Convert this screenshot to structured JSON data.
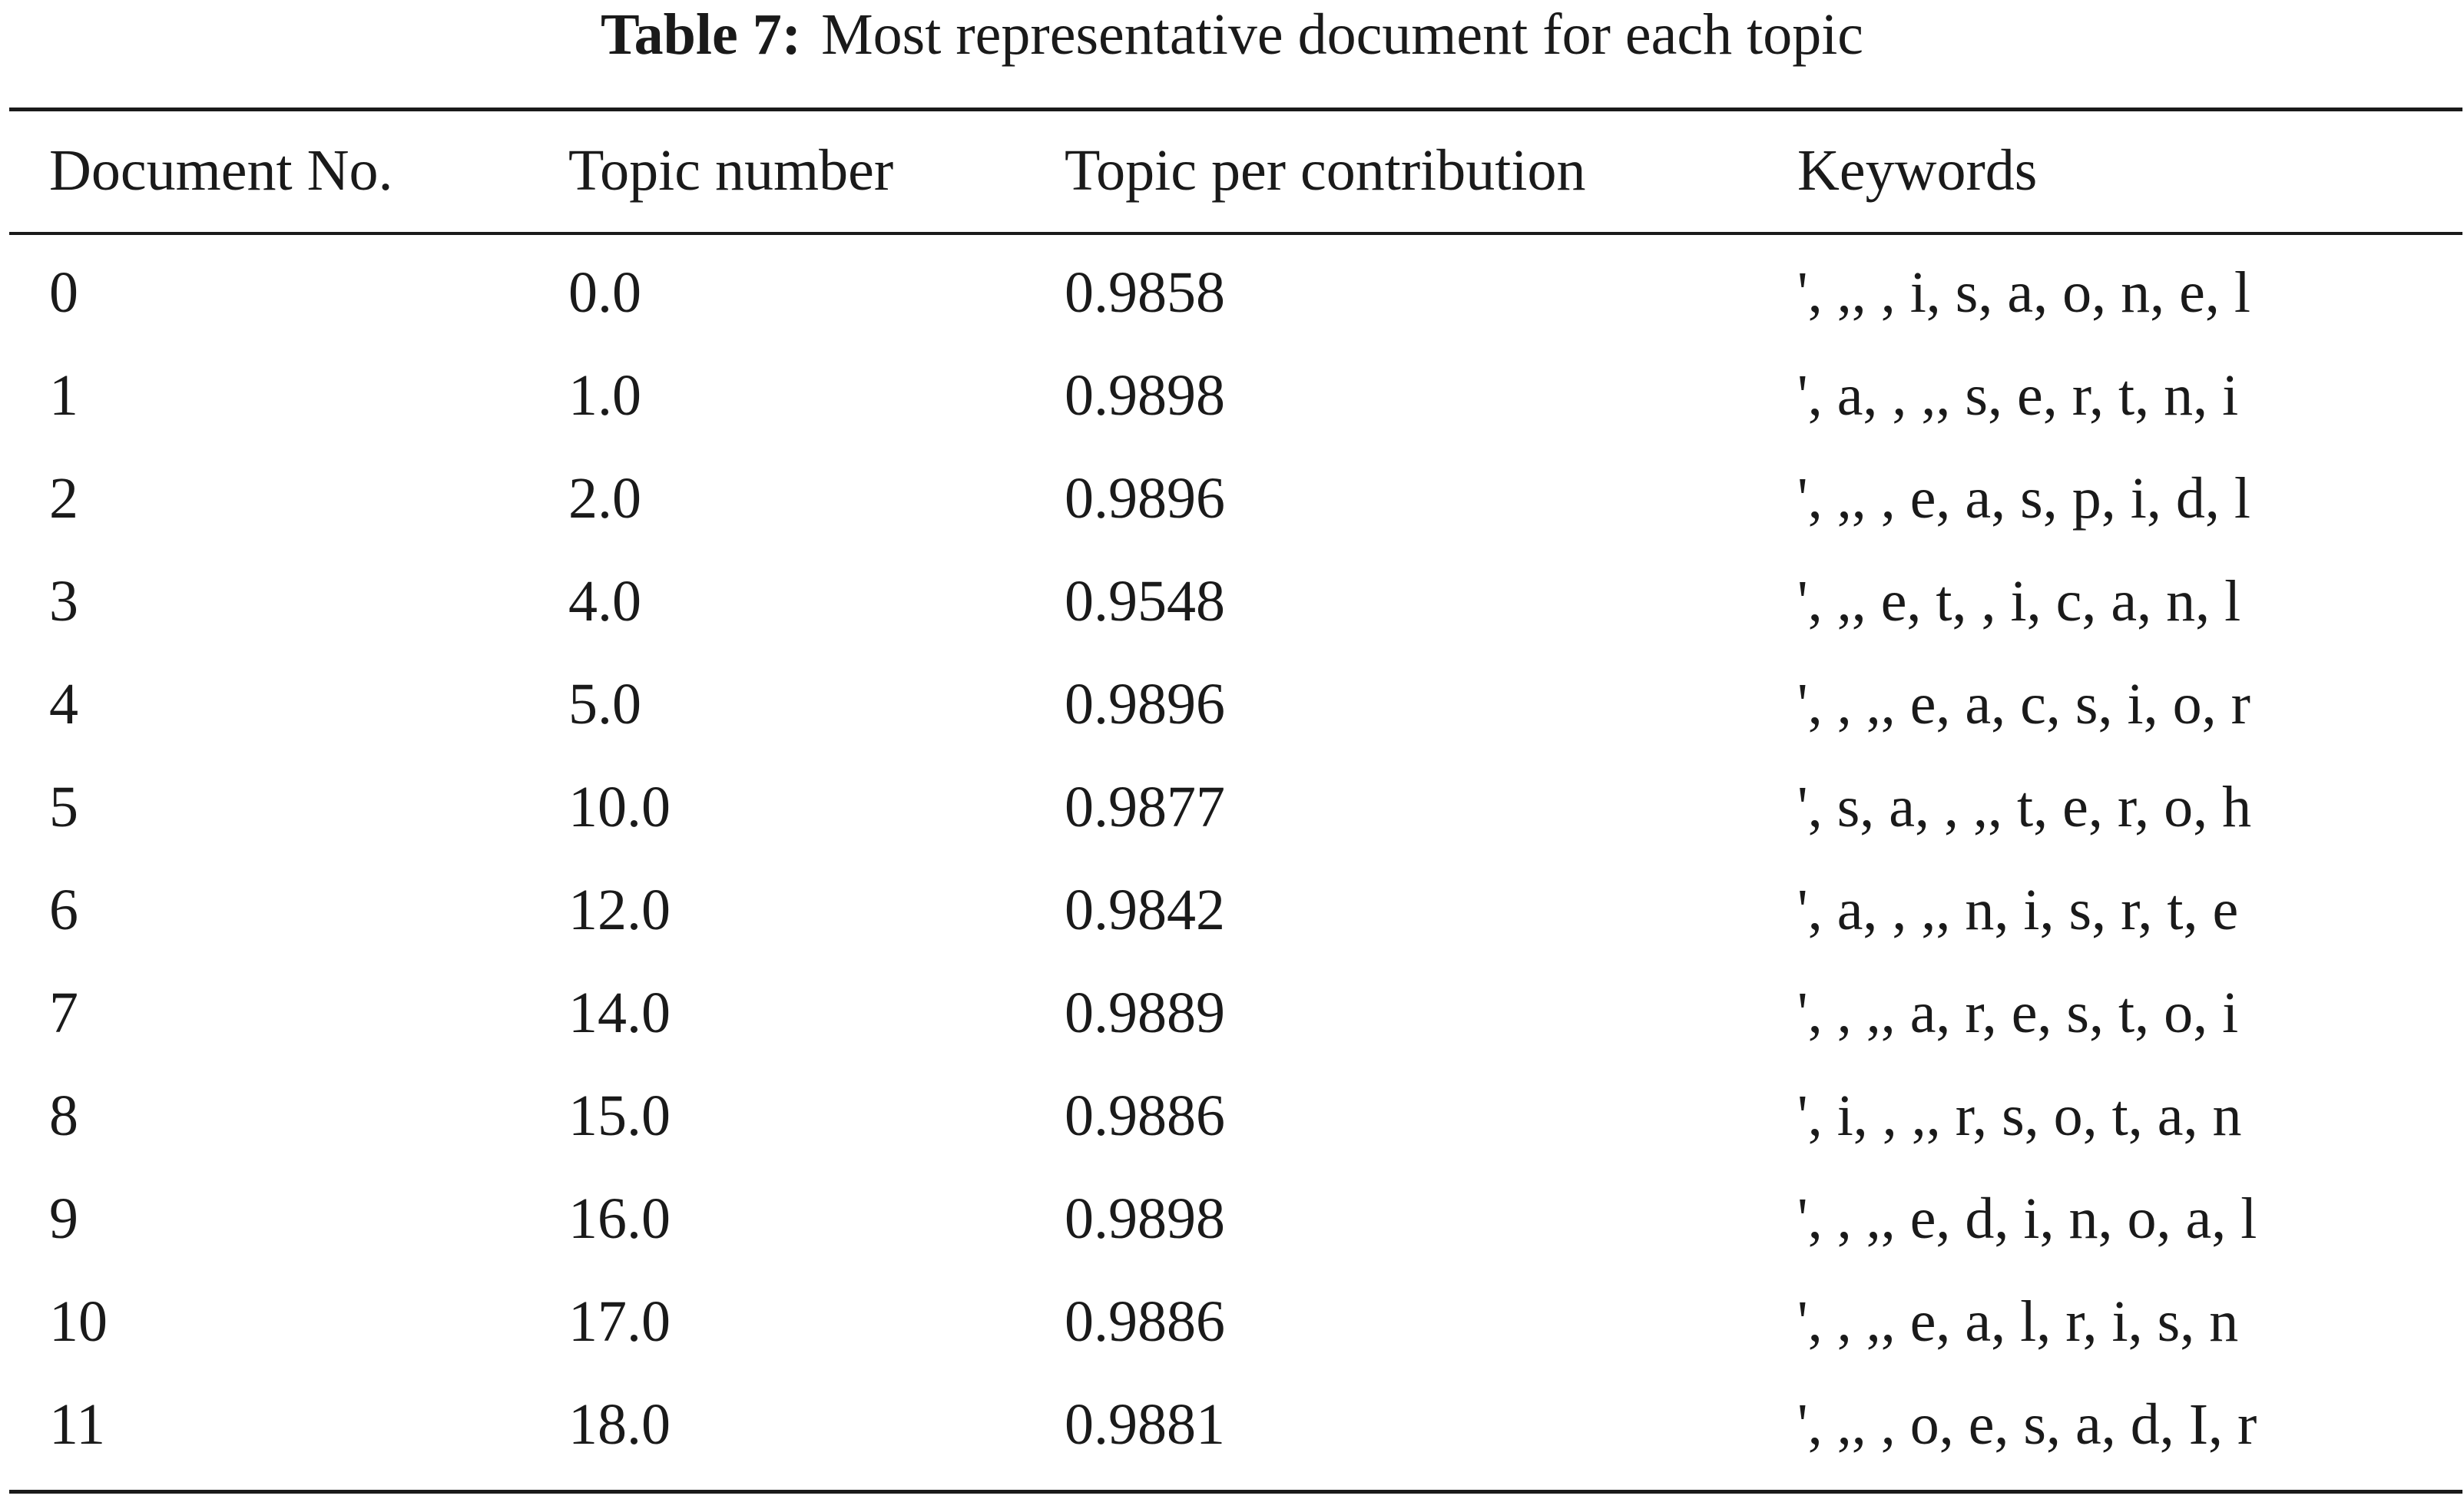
{
  "caption": {
    "label": "Table 7:",
    "text": "Most representative document for each topic"
  },
  "table": {
    "columns": [
      "Document No.",
      "Topic number",
      "Topic per contribution",
      "Keywords"
    ],
    "rows": [
      [
        "0",
        "0.0",
        "0.9858",
        "', ,, , i, s, a, o, n, e, l"
      ],
      [
        "1",
        "1.0",
        "0.9898",
        "', a, , ,, s, e, r, t, n, i"
      ],
      [
        "2",
        "2.0",
        "0.9896",
        "', ,, , e, a, s, p, i, d, l"
      ],
      [
        "3",
        "4.0",
        "0.9548",
        "', ,, e, t, , i, c, a, n, l"
      ],
      [
        "4",
        "5.0",
        "0.9896",
        "', , ,, e, a, c, s, i, o, r"
      ],
      [
        "5",
        "10.0",
        "0.9877",
        "', s, a, , ,, t, e, r, o, h"
      ],
      [
        "6",
        "12.0",
        "0.9842",
        "', a, , ,, n, i, s, r, t, e"
      ],
      [
        "7",
        "14.0",
        "0.9889",
        "', , ,, a, r, e, s, t, o, i"
      ],
      [
        "8",
        "15.0",
        "0.9886",
        "', i, , ,, r, s, o, t, a, n"
      ],
      [
        "9",
        "16.0",
        "0.9898",
        "', , ,, e, d, i, n, o, a, l"
      ],
      [
        "10",
        "17.0",
        "0.9886",
        "', , ,, e, a, l, r, i, s, n"
      ],
      [
        "11",
        "18.0",
        "0.9881",
        "', ,, , o, e, s, a, d, I, r"
      ]
    ]
  }
}
